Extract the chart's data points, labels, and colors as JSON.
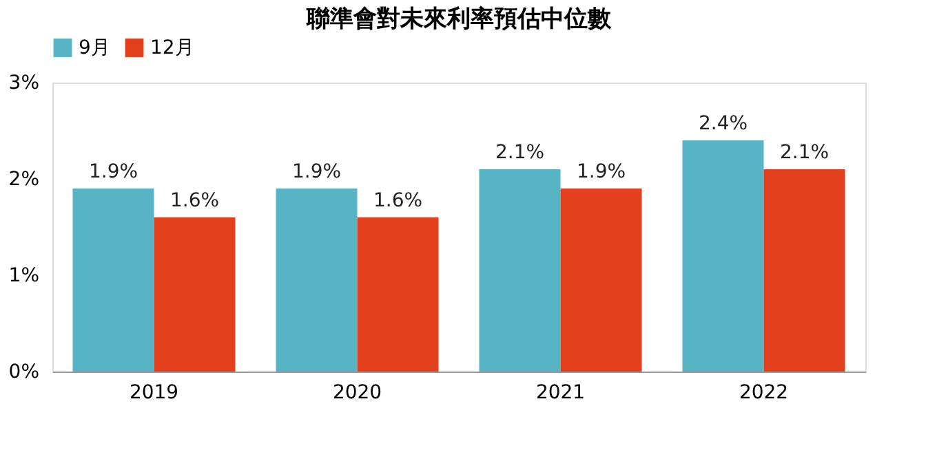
{
  "chart_data": {
    "type": "bar",
    "title": "聯準會對未來利率預估中位數",
    "categories": [
      "2019",
      "2020",
      "2021",
      "2022"
    ],
    "series": [
      {
        "name": "9月",
        "color": "#56b4c5",
        "values": [
          1.9,
          1.9,
          2.1,
          2.4
        ],
        "value_labels": [
          "1.9%",
          "1.9%",
          "2.1%",
          "2.4%"
        ]
      },
      {
        "name": "12月",
        "color": "#e2401c",
        "values": [
          1.6,
          1.6,
          1.9,
          2.1
        ],
        "value_labels": [
          "1.6%",
          "1.6%",
          "1.9%",
          "2.1%"
        ]
      }
    ],
    "ylim": [
      0,
      3
    ],
    "yticks": [
      {
        "value": 0,
        "label": "0%"
      },
      {
        "value": 1,
        "label": "1%"
      },
      {
        "value": 2,
        "label": "2%"
      },
      {
        "value": 3,
        "label": "3%"
      }
    ],
    "grid": false,
    "legend": "top"
  }
}
